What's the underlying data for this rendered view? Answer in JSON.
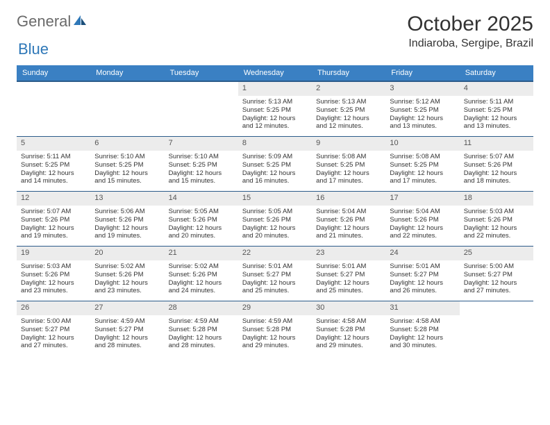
{
  "logo": {
    "general": "General",
    "blue": "Blue"
  },
  "title": "October 2025",
  "location": "Indiaroba, Sergipe, Brazil",
  "colors": {
    "header_bg": "#3a80c3",
    "header_border": "#2b5b8a",
    "daynum_bg": "#ececec",
    "logo_blue": "#2f78b8"
  },
  "dayHeaders": [
    "Sunday",
    "Monday",
    "Tuesday",
    "Wednesday",
    "Thursday",
    "Friday",
    "Saturday"
  ],
  "weeks": [
    [
      {
        "n": "",
        "sr": "",
        "ss": "",
        "dl": ""
      },
      {
        "n": "",
        "sr": "",
        "ss": "",
        "dl": ""
      },
      {
        "n": "",
        "sr": "",
        "ss": "",
        "dl": ""
      },
      {
        "n": "1",
        "sr": "Sunrise: 5:13 AM",
        "ss": "Sunset: 5:25 PM",
        "dl": "Daylight: 12 hours and 12 minutes."
      },
      {
        "n": "2",
        "sr": "Sunrise: 5:13 AM",
        "ss": "Sunset: 5:25 PM",
        "dl": "Daylight: 12 hours and 12 minutes."
      },
      {
        "n": "3",
        "sr": "Sunrise: 5:12 AM",
        "ss": "Sunset: 5:25 PM",
        "dl": "Daylight: 12 hours and 13 minutes."
      },
      {
        "n": "4",
        "sr": "Sunrise: 5:11 AM",
        "ss": "Sunset: 5:25 PM",
        "dl": "Daylight: 12 hours and 13 minutes."
      }
    ],
    [
      {
        "n": "5",
        "sr": "Sunrise: 5:11 AM",
        "ss": "Sunset: 5:25 PM",
        "dl": "Daylight: 12 hours and 14 minutes."
      },
      {
        "n": "6",
        "sr": "Sunrise: 5:10 AM",
        "ss": "Sunset: 5:25 PM",
        "dl": "Daylight: 12 hours and 15 minutes."
      },
      {
        "n": "7",
        "sr": "Sunrise: 5:10 AM",
        "ss": "Sunset: 5:25 PM",
        "dl": "Daylight: 12 hours and 15 minutes."
      },
      {
        "n": "8",
        "sr": "Sunrise: 5:09 AM",
        "ss": "Sunset: 5:25 PM",
        "dl": "Daylight: 12 hours and 16 minutes."
      },
      {
        "n": "9",
        "sr": "Sunrise: 5:08 AM",
        "ss": "Sunset: 5:25 PM",
        "dl": "Daylight: 12 hours and 17 minutes."
      },
      {
        "n": "10",
        "sr": "Sunrise: 5:08 AM",
        "ss": "Sunset: 5:25 PM",
        "dl": "Daylight: 12 hours and 17 minutes."
      },
      {
        "n": "11",
        "sr": "Sunrise: 5:07 AM",
        "ss": "Sunset: 5:26 PM",
        "dl": "Daylight: 12 hours and 18 minutes."
      }
    ],
    [
      {
        "n": "12",
        "sr": "Sunrise: 5:07 AM",
        "ss": "Sunset: 5:26 PM",
        "dl": "Daylight: 12 hours and 19 minutes."
      },
      {
        "n": "13",
        "sr": "Sunrise: 5:06 AM",
        "ss": "Sunset: 5:26 PM",
        "dl": "Daylight: 12 hours and 19 minutes."
      },
      {
        "n": "14",
        "sr": "Sunrise: 5:05 AM",
        "ss": "Sunset: 5:26 PM",
        "dl": "Daylight: 12 hours and 20 minutes."
      },
      {
        "n": "15",
        "sr": "Sunrise: 5:05 AM",
        "ss": "Sunset: 5:26 PM",
        "dl": "Daylight: 12 hours and 20 minutes."
      },
      {
        "n": "16",
        "sr": "Sunrise: 5:04 AM",
        "ss": "Sunset: 5:26 PM",
        "dl": "Daylight: 12 hours and 21 minutes."
      },
      {
        "n": "17",
        "sr": "Sunrise: 5:04 AM",
        "ss": "Sunset: 5:26 PM",
        "dl": "Daylight: 12 hours and 22 minutes."
      },
      {
        "n": "18",
        "sr": "Sunrise: 5:03 AM",
        "ss": "Sunset: 5:26 PM",
        "dl": "Daylight: 12 hours and 22 minutes."
      }
    ],
    [
      {
        "n": "19",
        "sr": "Sunrise: 5:03 AM",
        "ss": "Sunset: 5:26 PM",
        "dl": "Daylight: 12 hours and 23 minutes."
      },
      {
        "n": "20",
        "sr": "Sunrise: 5:02 AM",
        "ss": "Sunset: 5:26 PM",
        "dl": "Daylight: 12 hours and 23 minutes."
      },
      {
        "n": "21",
        "sr": "Sunrise: 5:02 AM",
        "ss": "Sunset: 5:26 PM",
        "dl": "Daylight: 12 hours and 24 minutes."
      },
      {
        "n": "22",
        "sr": "Sunrise: 5:01 AM",
        "ss": "Sunset: 5:27 PM",
        "dl": "Daylight: 12 hours and 25 minutes."
      },
      {
        "n": "23",
        "sr": "Sunrise: 5:01 AM",
        "ss": "Sunset: 5:27 PM",
        "dl": "Daylight: 12 hours and 25 minutes."
      },
      {
        "n": "24",
        "sr": "Sunrise: 5:01 AM",
        "ss": "Sunset: 5:27 PM",
        "dl": "Daylight: 12 hours and 26 minutes."
      },
      {
        "n": "25",
        "sr": "Sunrise: 5:00 AM",
        "ss": "Sunset: 5:27 PM",
        "dl": "Daylight: 12 hours and 27 minutes."
      }
    ],
    [
      {
        "n": "26",
        "sr": "Sunrise: 5:00 AM",
        "ss": "Sunset: 5:27 PM",
        "dl": "Daylight: 12 hours and 27 minutes."
      },
      {
        "n": "27",
        "sr": "Sunrise: 4:59 AM",
        "ss": "Sunset: 5:27 PM",
        "dl": "Daylight: 12 hours and 28 minutes."
      },
      {
        "n": "28",
        "sr": "Sunrise: 4:59 AM",
        "ss": "Sunset: 5:28 PM",
        "dl": "Daylight: 12 hours and 28 minutes."
      },
      {
        "n": "29",
        "sr": "Sunrise: 4:59 AM",
        "ss": "Sunset: 5:28 PM",
        "dl": "Daylight: 12 hours and 29 minutes."
      },
      {
        "n": "30",
        "sr": "Sunrise: 4:58 AM",
        "ss": "Sunset: 5:28 PM",
        "dl": "Daylight: 12 hours and 29 minutes."
      },
      {
        "n": "31",
        "sr": "Sunrise: 4:58 AM",
        "ss": "Sunset: 5:28 PM",
        "dl": "Daylight: 12 hours and 30 minutes."
      },
      {
        "n": "",
        "sr": "",
        "ss": "",
        "dl": ""
      }
    ]
  ]
}
